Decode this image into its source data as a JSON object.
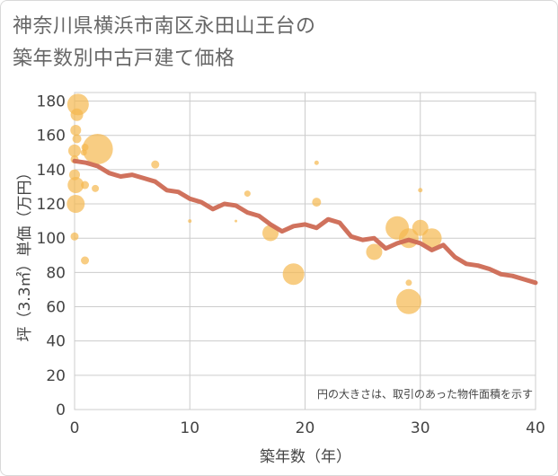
{
  "title_line1": "神奈川県横浜市南区永田山王台の",
  "title_line2": "築年数別中古戸建て価格",
  "chart_data": {
    "type": "scatter",
    "title": "神奈川県横浜市南区永田山王台の築年数別中古戸建て価格",
    "xlabel": "築年数（年）",
    "ylabel": "坪（3.3㎡）単価（万円）",
    "xlim": [
      0,
      40
    ],
    "ylim": [
      0,
      185
    ],
    "xticks": [
      0,
      10,
      20,
      30,
      40
    ],
    "yticks": [
      0,
      20,
      40,
      60,
      80,
      100,
      120,
      140,
      160,
      180
    ],
    "grid": true,
    "note": "円の大きさは、取引のあった物件面積を示す",
    "colors": {
      "bubble": "#f5b84e",
      "line": "#cd6a54",
      "grid": "#cccccc"
    },
    "bubbles": [
      {
        "x": 0.3,
        "y": 178,
        "size": 24
      },
      {
        "x": 0.2,
        "y": 172,
        "size": 14
      },
      {
        "x": 0.1,
        "y": 163,
        "size": 12
      },
      {
        "x": 0.2,
        "y": 158,
        "size": 10
      },
      {
        "x": 0.0,
        "y": 151,
        "size": 14
      },
      {
        "x": 2.0,
        "y": 152,
        "size": 34
      },
      {
        "x": 0.9,
        "y": 153,
        "size": 8
      },
      {
        "x": 0.8,
        "y": 150,
        "size": 7
      },
      {
        "x": 0.0,
        "y": 146,
        "size": 9
      },
      {
        "x": 0.0,
        "y": 137,
        "size": 12
      },
      {
        "x": 0.1,
        "y": 131,
        "size": 18
      },
      {
        "x": 0.9,
        "y": 131,
        "size": 9
      },
      {
        "x": 1.8,
        "y": 129,
        "size": 8
      },
      {
        "x": 0.1,
        "y": 120,
        "size": 20
      },
      {
        "x": 0.0,
        "y": 101,
        "size": 9
      },
      {
        "x": 0.9,
        "y": 87,
        "size": 9
      },
      {
        "x": 7.0,
        "y": 143,
        "size": 9
      },
      {
        "x": 10.0,
        "y": 110,
        "size": 4
      },
      {
        "x": 14.0,
        "y": 110,
        "size": 3
      },
      {
        "x": 15.0,
        "y": 126,
        "size": 7
      },
      {
        "x": 17.0,
        "y": 103,
        "size": 18
      },
      {
        "x": 19.0,
        "y": 79,
        "size": 24
      },
      {
        "x": 21.0,
        "y": 144,
        "size": 5
      },
      {
        "x": 21.0,
        "y": 121,
        "size": 10
      },
      {
        "x": 26.0,
        "y": 92,
        "size": 18
      },
      {
        "x": 28.0,
        "y": 106,
        "size": 26
      },
      {
        "x": 29.0,
        "y": 100,
        "size": 22
      },
      {
        "x": 29.0,
        "y": 74,
        "size": 7
      },
      {
        "x": 29.0,
        "y": 63,
        "size": 28
      },
      {
        "x": 30.0,
        "y": 128,
        "size": 5
      },
      {
        "x": 30.0,
        "y": 106,
        "size": 18
      },
      {
        "x": 31.0,
        "y": 100,
        "size": 22
      }
    ],
    "trend": {
      "x": [
        0,
        1,
        2,
        3,
        4,
        5,
        6,
        7,
        8,
        9,
        10,
        11,
        12,
        13,
        14,
        15,
        16,
        17,
        18,
        19,
        20,
        21,
        22,
        23,
        24,
        25,
        26,
        27,
        28,
        29,
        30,
        31,
        32,
        33,
        34,
        35,
        36,
        37,
        38,
        39,
        40
      ],
      "y": [
        145,
        144,
        142,
        138,
        136,
        137,
        135,
        133,
        128,
        127,
        123,
        121,
        117,
        120,
        119,
        115,
        113,
        108,
        104,
        107,
        108,
        106,
        111,
        109,
        101,
        99,
        100,
        94,
        97,
        99,
        97,
        93,
        96,
        89,
        85,
        84,
        82,
        79,
        78,
        76,
        74
      ]
    }
  }
}
